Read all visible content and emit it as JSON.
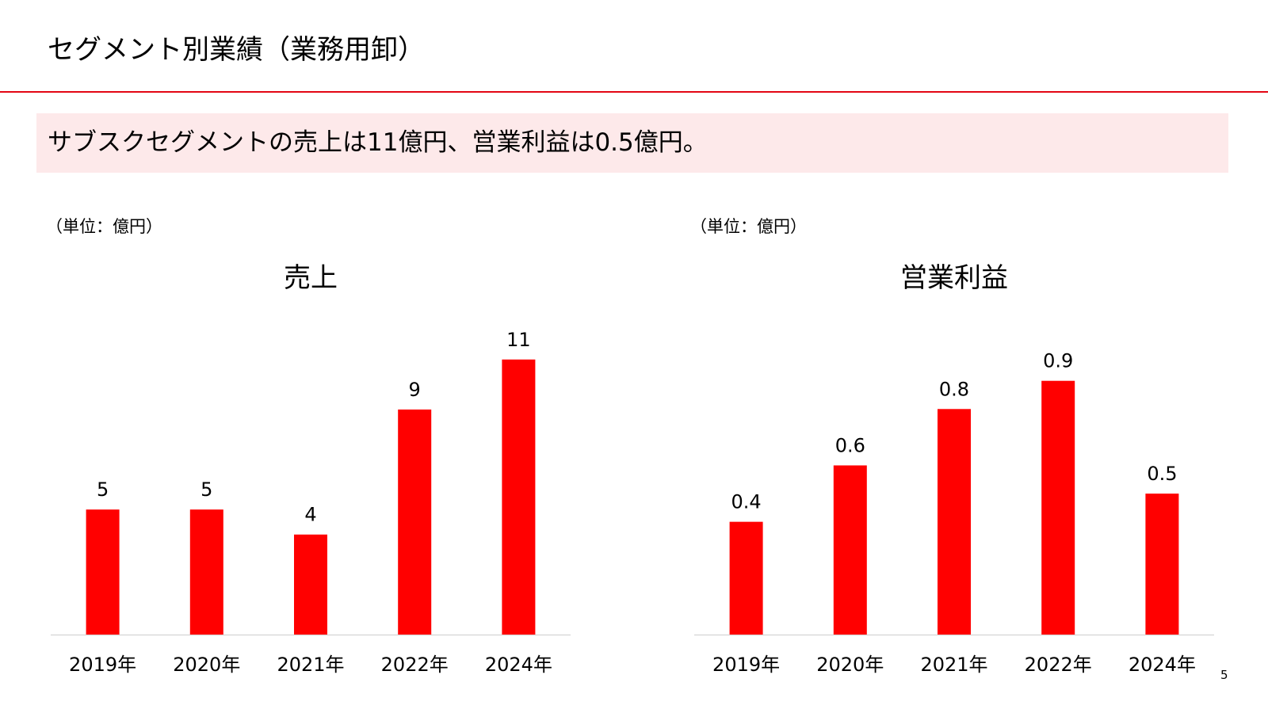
{
  "header": {
    "title": "セグメント別業績（業務用卸）"
  },
  "summary": {
    "text": "サブスクセグメントの売上は11億円、営業利益は0.5億円。"
  },
  "theme": {
    "accent": "#e30613",
    "bar_color": "#ff0000",
    "summary_bg": "#fde9ea",
    "axis_color": "#d9d9d9"
  },
  "chart_data": [
    {
      "type": "bar",
      "title": "売上",
      "unit_label": "（単位：億円）",
      "categories": [
        "2019年",
        "2020年",
        "2021年",
        "2022年",
        "2024年"
      ],
      "values": [
        5,
        5,
        4,
        9,
        11
      ],
      "value_labels": [
        "5",
        "5",
        "4",
        "9",
        "11"
      ],
      "ylim": [
        0,
        11.5
      ],
      "xlabel": "",
      "ylabel": "",
      "grid": false
    },
    {
      "type": "bar",
      "title": "営業利益",
      "unit_label": "（単位：億円）",
      "categories": [
        "2019年",
        "2020年",
        "2021年",
        "2022年",
        "2024年"
      ],
      "values": [
        0.4,
        0.6,
        0.8,
        0.9,
        0.5
      ],
      "value_labels": [
        "0.4",
        "0.6",
        "0.8",
        "0.9",
        "0.5"
      ],
      "ylim": [
        0,
        1.02
      ],
      "xlabel": "",
      "ylabel": "",
      "grid": false
    }
  ],
  "footer": {
    "page_number": "5"
  }
}
